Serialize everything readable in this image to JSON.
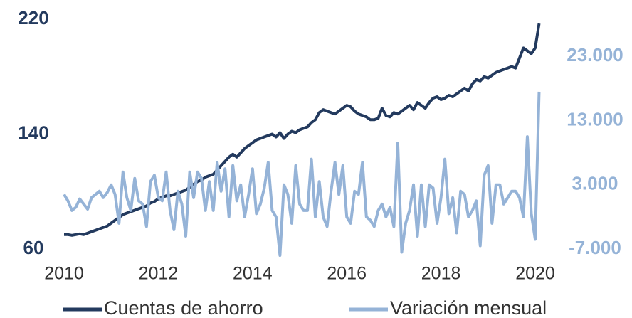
{
  "chart_data": {
    "type": "line",
    "x": [
      2010.0,
      2010.083,
      2010.167,
      2010.25,
      2010.333,
      2010.417,
      2010.5,
      2010.583,
      2010.667,
      2010.75,
      2010.833,
      2010.917,
      2011.0,
      2011.083,
      2011.167,
      2011.25,
      2011.333,
      2011.417,
      2011.5,
      2011.583,
      2011.667,
      2011.75,
      2011.833,
      2011.917,
      2012.0,
      2012.083,
      2012.167,
      2012.25,
      2012.333,
      2012.417,
      2012.5,
      2012.583,
      2012.667,
      2012.75,
      2012.833,
      2012.917,
      2013.0,
      2013.083,
      2013.167,
      2013.25,
      2013.333,
      2013.417,
      2013.5,
      2013.583,
      2013.667,
      2013.75,
      2013.833,
      2013.917,
      2014.0,
      2014.083,
      2014.167,
      2014.25,
      2014.333,
      2014.417,
      2014.5,
      2014.583,
      2014.667,
      2014.75,
      2014.833,
      2014.917,
      2015.0,
      2015.083,
      2015.167,
      2015.25,
      2015.333,
      2015.417,
      2015.5,
      2015.583,
      2015.667,
      2015.75,
      2015.833,
      2015.917,
      2016.0,
      2016.083,
      2016.167,
      2016.25,
      2016.333,
      2016.417,
      2016.5,
      2016.583,
      2016.667,
      2016.75,
      2016.833,
      2016.917,
      2017.0,
      2017.083,
      2017.167,
      2017.25,
      2017.333,
      2017.417,
      2017.5,
      2017.583,
      2017.667,
      2017.75,
      2017.833,
      2017.917,
      2018.0,
      2018.083,
      2018.167,
      2018.25,
      2018.333,
      2018.417,
      2018.5,
      2018.583,
      2018.667,
      2018.75,
      2018.833,
      2018.917,
      2019.0,
      2019.083,
      2019.167,
      2019.25,
      2019.333,
      2019.417,
      2019.5,
      2019.583,
      2019.667,
      2019.75,
      2019.833,
      2019.917,
      2020.0,
      2020.083
    ],
    "series": [
      {
        "name": "Cuentas de ahorro",
        "color": "#233a5e",
        "values": [
          70,
          70,
          69.5,
          70,
          70.5,
          70,
          71,
          72,
          73,
          74,
          75,
          76,
          78,
          80,
          82,
          84,
          85,
          86,
          87,
          88,
          89,
          90,
          92,
          93,
          95,
          96,
          97,
          97,
          98,
          99,
          100,
          101,
          103,
          105,
          107,
          108,
          110,
          111,
          112,
          115,
          118,
          121,
          124,
          126,
          124,
          127,
          130,
          132,
          134,
          136,
          137,
          138,
          139,
          140,
          138,
          141,
          137,
          140,
          142,
          141,
          143,
          144,
          145,
          148,
          150,
          155,
          157,
          156,
          155,
          154,
          156,
          158,
          160,
          159,
          156,
          154,
          153,
          152,
          150,
          150,
          151,
          158,
          153,
          152,
          155,
          154,
          156,
          158,
          160,
          157,
          162,
          160,
          158,
          162,
          165,
          166,
          164,
          165,
          167,
          166,
          168,
          170,
          172,
          170,
          175,
          178,
          177,
          180,
          179,
          181,
          183,
          184,
          185,
          186,
          187,
          186,
          193,
          200,
          198,
          196,
          200,
          217
        ]
      },
      {
        "name": "Variación mensual",
        "color": "#95b3d7",
        "axis": "y2",
        "values": [
          1500,
          500,
          -1000,
          -500,
          800,
          0,
          -800,
          1000,
          1500,
          2000,
          1000,
          1800,
          3000,
          1500,
          -3000,
          5000,
          1000,
          -1000,
          4000,
          500,
          0,
          -3500,
          3500,
          4500,
          1000,
          500,
          5000,
          -1000,
          -4000,
          2000,
          0,
          -5000,
          5000,
          1000,
          5000,
          4000,
          -1000,
          3500,
          -1000,
          6500,
          2000,
          5500,
          -2000,
          6000,
          500,
          3000,
          -2000,
          1500,
          5500,
          -1500,
          0,
          2500,
          6500,
          -1000,
          -2000,
          -8000,
          3000,
          1500,
          -3000,
          6000,
          0,
          -1000,
          -1000,
          7000,
          -2000,
          3500,
          -2000,
          -3500,
          2000,
          6500,
          1500,
          6000,
          -2000,
          -3000,
          2000,
          1500,
          6500,
          -2000,
          -2500,
          -3500,
          -1000,
          0,
          -2000,
          -500,
          -3500,
          9500,
          -7500,
          -3000,
          -1000,
          3000,
          -5000,
          3000,
          -3500,
          3000,
          2500,
          -3000,
          1000,
          7000,
          -1500,
          1000,
          -4500,
          2000,
          1500,
          -2000,
          -1000,
          500,
          -6500,
          4500,
          6000,
          -3000,
          3000,
          3000,
          0,
          1000,
          2000,
          2000,
          1000,
          -2000,
          10500,
          -1500,
          -5500,
          17500
        ]
      }
    ],
    "xlim": [
      2010,
      2020
    ],
    "xticks": [
      2010,
      2012,
      2014,
      2016,
      2018,
      2020
    ],
    "ylim": [
      60,
      220
    ],
    "yticks": [
      60,
      140,
      220
    ],
    "y2lim": [
      -7000,
      28800
    ],
    "y2ticks": [
      {
        "value": -7000,
        "label": "-7.000"
      },
      {
        "value": 3000,
        "label": "3.000"
      },
      {
        "value": 13000,
        "label": "13.000"
      },
      {
        "value": 23000,
        "label": "23.000"
      }
    ]
  }
}
